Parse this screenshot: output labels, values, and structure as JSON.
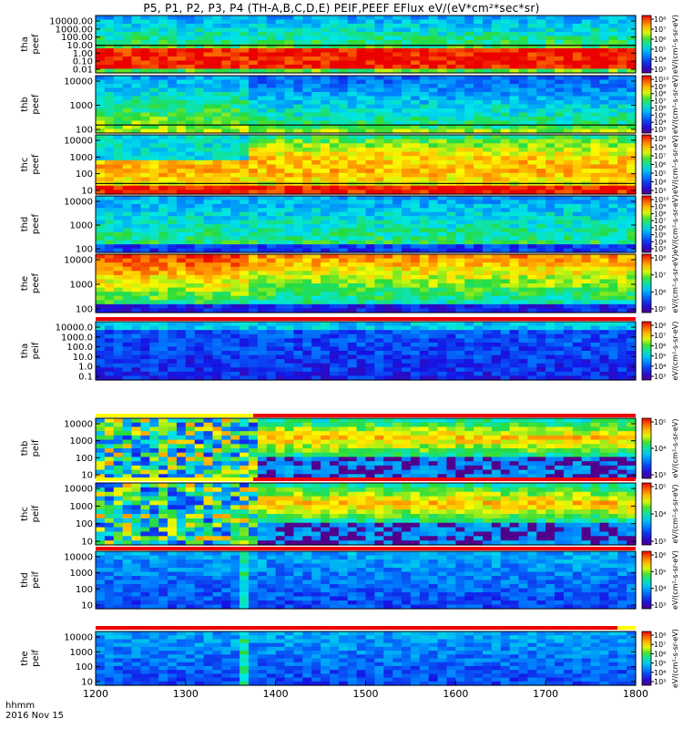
{
  "title": "P5, P1, P2, P3, P4 (TH-A,B,C,D,E) PEIF,PEEF EFlux eV/(eV*cm²*sec*sr)",
  "footer": {
    "time_label": "hhmm",
    "date_label": "2016 Nov 15"
  },
  "colors": {
    "saturation_red": "#ee0000",
    "flag_yellow": "#ffff00",
    "flag_red": "#ee0000",
    "spacecraft_potential_line": "#000000"
  },
  "chart_data": {
    "type": "heatmap",
    "x": {
      "label": "hhmm",
      "range": [
        1200,
        1800
      ],
      "ticks": [
        1200,
        1300,
        1400,
        1500,
        1600,
        1700,
        1800
      ],
      "tick_labels": [
        "1200",
        "1300",
        "1400",
        "1500",
        "1600",
        "1700",
        "1800"
      ]
    },
    "colorscale": "rainbow (purple-blue-cyan-green-yellow-orange-red)",
    "panels": [
      {
        "probe": "tha",
        "species": "peef",
        "ylabel_top": "tha",
        "ylabel_bottom": "peef",
        "y_scale": "log",
        "y_tick_labels": [
          "10000.00",
          "1000.00",
          "100.00",
          "10.00",
          "1.00",
          "0.10",
          "0.01"
        ],
        "cbar_tick_labels": [
          "10⁸",
          "10⁷",
          "10⁶",
          "10⁵",
          "10⁴",
          "10³"
        ],
        "cbar_label": "eV/(cm²-s-sr-eV)",
        "bar_above": null
      },
      {
        "probe": "thb",
        "species": "peef",
        "ylabel_top": "thb",
        "ylabel_bottom": "peef",
        "y_scale": "log",
        "y_tick_labels": [
          "10000",
          "1000",
          "100"
        ],
        "cbar_tick_labels": [
          "10¹⁰",
          "10⁹",
          "10⁸",
          "10⁷",
          "10⁶",
          "10⁵",
          "10⁴",
          "10³"
        ],
        "cbar_label": "eV/(cm²-s-sr-eV)",
        "bar_above": null
      },
      {
        "probe": "thc",
        "species": "peef",
        "ylabel_top": "thc",
        "ylabel_bottom": "peef",
        "y_scale": "log",
        "y_tick_labels": [
          "10000",
          "1000",
          "100",
          "10"
        ],
        "cbar_tick_labels": [
          "10⁹",
          "10⁸",
          "10⁷",
          "10⁶",
          "10⁵",
          "10⁴",
          "10³"
        ],
        "cbar_label": "eV/(cm²-s-sr-eV)",
        "bar_above": null
      },
      {
        "probe": "thd",
        "species": "peef",
        "ylabel_top": "thd",
        "ylabel_bottom": "peef",
        "y_scale": "log",
        "y_tick_labels": [
          "10000",
          "1000",
          "100"
        ],
        "cbar_tick_labels": [
          "10¹⁰",
          "10⁹",
          "10⁸",
          "10⁷",
          "10⁶",
          "10⁵",
          "10⁴",
          "10³"
        ],
        "cbar_label": "eV/(cm²-s-sr-eV)",
        "bar_above": null
      },
      {
        "probe": "the",
        "species": "peef",
        "ylabel_top": "the",
        "ylabel_bottom": "peef",
        "y_scale": "log",
        "y_tick_labels": [
          "10000",
          "1000",
          "100"
        ],
        "cbar_tick_labels": [
          "10⁸",
          "10⁷",
          "10⁶",
          "10⁵"
        ],
        "cbar_label": "eV/(cm²-s-sr-eV)",
        "bar_above": null
      },
      {
        "probe": "tha",
        "species": "peif",
        "ylabel_top": "tha",
        "ylabel_bottom": "peif",
        "y_scale": "log",
        "y_tick_labels": [
          "10000.0",
          "1000.0",
          "100.0",
          "10.0",
          "1.0",
          "0.1"
        ],
        "cbar_tick_labels": [
          "10⁸",
          "10⁷",
          "10⁶",
          "10⁵",
          "10⁴",
          "10³"
        ],
        "cbar_label": "eV/(cm²-s-sr-eV)",
        "bar_above": {
          "segments": [
            {
              "from": 1200,
              "to": 1800,
              "color": "#ee0000"
            }
          ]
        }
      },
      {
        "probe": "thb",
        "species": "peif",
        "ylabel_top": "thb",
        "ylabel_bottom": "peif",
        "y_scale": "log",
        "y_tick_labels": [
          "10000",
          "1000",
          "100",
          "10"
        ],
        "cbar_tick_labels": [
          "10⁵",
          "10⁴",
          "10³"
        ],
        "cbar_label": "eV/(cm²-s-sr-eV)",
        "bar_above": {
          "segments": [
            {
              "from": 1200,
              "to": 1375,
              "color": "#ffff00"
            },
            {
              "from": 1375,
              "to": 1800,
              "color": "#ee0000"
            }
          ]
        }
      },
      {
        "probe": "thc",
        "species": "peif",
        "ylabel_top": "thc",
        "ylabel_bottom": "peif",
        "y_scale": "log",
        "y_tick_labels": [
          "10000",
          "1000",
          "100",
          "10"
        ],
        "cbar_tick_labels": [
          "10⁵",
          "10⁴",
          "10³"
        ],
        "cbar_label": "eV/(cm²-s-sr-eV)",
        "bar_above": {
          "segments": [
            {
              "from": 1200,
              "to": 1375,
              "color": "#ffff00"
            },
            {
              "from": 1375,
              "to": 1800,
              "color": "#ee0000"
            }
          ]
        }
      },
      {
        "probe": "thd",
        "species": "peif",
        "ylabel_top": "thd",
        "ylabel_bottom": "peif",
        "y_scale": "log",
        "y_tick_labels": [
          "10000",
          "1000",
          "100",
          "10"
        ],
        "cbar_tick_labels": [
          "10⁶",
          "10⁵",
          "10⁴",
          "10³"
        ],
        "cbar_label": "eV/(cm²-s-sr-eV)",
        "bar_above": {
          "segments": [
            {
              "from": 1200,
              "to": 1800,
              "color": "#ee0000"
            }
          ]
        }
      },
      {
        "probe": "the",
        "species": "peif",
        "ylabel_top": "the",
        "ylabel_bottom": "peif",
        "y_scale": "log",
        "y_tick_labels": [
          "10000",
          "1000",
          "100",
          "10"
        ],
        "cbar_tick_labels": [
          "10⁸",
          "10⁷",
          "10⁶",
          "10⁵",
          "10⁴",
          "10³"
        ],
        "cbar_label": "eV/(cm²-s-sr-eV)",
        "bar_above": {
          "segments": [
            {
              "from": 1200,
              "to": 1780,
              "color": "#ee0000"
            },
            {
              "from": 1780,
              "to": 1800,
              "color": "#ffff00"
            }
          ]
        }
      }
    ]
  }
}
